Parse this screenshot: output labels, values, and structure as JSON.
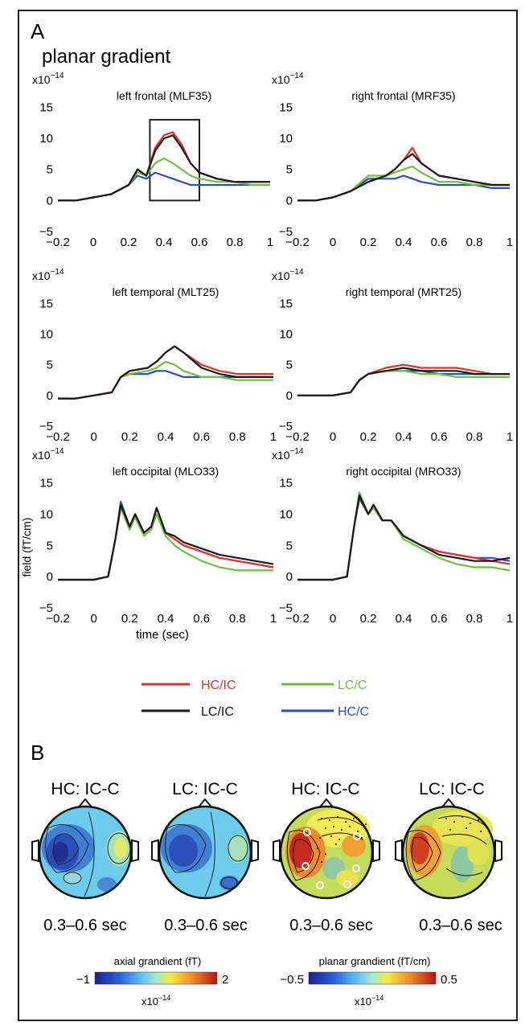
{
  "panel_a": {
    "letter": "A",
    "title": "planar gradient",
    "exponent_prefix": "x10",
    "exponent_power": "−14",
    "ylabel": "field (fT/cm)",
    "xlabel": "time (sec)",
    "yticks": [
      "15",
      "10",
      "5",
      "0",
      "−5"
    ],
    "xticks": [
      "−0.2",
      "0",
      "0.2",
      "0.4",
      "0.6",
      "0.8",
      "1"
    ],
    "subplot_titles": [
      "left frontal (MLF35)",
      "right frontal (MRF35)",
      "left temporal (MLT25)",
      "right temporal (MRT25)",
      "left occipital (MLO33)",
      "right occipital (MRO33)"
    ]
  },
  "legend": [
    {
      "label": "HC/IC",
      "color": "#e0312b"
    },
    {
      "label": "LC/C",
      "color": "#72bd45"
    },
    {
      "label": "LC/IC",
      "color": "#1a1a1a"
    },
    {
      "label": "HC/C",
      "color": "#2c4fb8"
    }
  ],
  "panel_b": {
    "letter": "B",
    "map_titles": [
      "HC: IC-C",
      "LC: IC-C",
      "HC: IC-C",
      "LC: IC-C"
    ],
    "time_labels": [
      "0.3–0.6 sec",
      "0.3–0.6 sec",
      "0.3–0.6 sec",
      "0.3–0.6 sec"
    ],
    "colorbar_axial": {
      "label": "axial grandient (fT)",
      "min": "−1",
      "max": "2",
      "scale": "x10",
      "scale_power": "−14"
    },
    "colorbar_planar": {
      "label": "planar grandient (fT/cm)",
      "min": "−0.5",
      "max": "0.5",
      "scale": "x10",
      "scale_power": "−14"
    }
  },
  "chart_data": [
    {
      "type": "line",
      "title": "left frontal (MLF35)",
      "xlabel": "",
      "ylabel": "",
      "xlim": [
        -0.2,
        1
      ],
      "ylim": [
        -5,
        17
      ],
      "highlight_box": {
        "x": [
          0.32,
          0.6
        ],
        "y": [
          0,
          13
        ]
      },
      "x": [
        -0.2,
        -0.1,
        0,
        0.1,
        0.2,
        0.25,
        0.3,
        0.35,
        0.4,
        0.45,
        0.5,
        0.55,
        0.6,
        0.7,
        0.8,
        0.9,
        1
      ],
      "series": [
        {
          "name": "HC/IC",
          "values": [
            0,
            0,
            0.5,
            1,
            2.5,
            5,
            4,
            8.5,
            10.5,
            11,
            9,
            6,
            4.5,
            3.5,
            3,
            3,
            3
          ]
        },
        {
          "name": "LC/IC",
          "values": [
            0,
            0,
            0.5,
            1,
            2.5,
            5,
            4,
            8,
            10,
            10.5,
            8.5,
            6,
            4.5,
            3.5,
            3,
            3,
            3
          ]
        },
        {
          "name": "LC/C",
          "values": [
            0,
            0,
            0.5,
            1,
            2.5,
            4.5,
            4,
            6,
            6.8,
            6,
            5,
            4,
            3.5,
            3,
            3,
            2.5,
            2.5
          ]
        },
        {
          "name": "HC/C",
          "values": [
            0,
            0,
            0.5,
            1,
            2.5,
            4,
            3.5,
            4.5,
            4,
            3.5,
            3,
            2.5,
            2.5,
            2.5,
            2.5,
            2.5,
            2.5
          ]
        }
      ]
    },
    {
      "type": "line",
      "title": "right frontal (MRF35)",
      "xlabel": "",
      "ylabel": "",
      "xlim": [
        -0.2,
        1
      ],
      "ylim": [
        -5,
        17
      ],
      "x": [
        -0.2,
        -0.1,
        0,
        0.1,
        0.2,
        0.3,
        0.35,
        0.4,
        0.45,
        0.5,
        0.6,
        0.7,
        0.8,
        0.9,
        1
      ],
      "series": [
        {
          "name": "HC/IC",
          "values": [
            0,
            0,
            0.5,
            1.5,
            3,
            4,
            5,
            6.5,
            8.5,
            6,
            4,
            3.5,
            3,
            2.5,
            2.5
          ]
        },
        {
          "name": "LC/IC",
          "values": [
            0,
            0,
            0.5,
            1.5,
            3,
            4,
            5,
            6.5,
            7.5,
            6,
            4,
            3.5,
            3,
            2.5,
            2.5
          ]
        },
        {
          "name": "LC/C",
          "values": [
            0,
            0,
            0.5,
            1.5,
            4,
            4,
            4.5,
            5,
            5.5,
            4.5,
            3,
            3,
            2.5,
            2.5,
            2.5
          ]
        },
        {
          "name": "HC/C",
          "values": [
            0,
            0,
            0.5,
            1.5,
            3.5,
            3.5,
            3.5,
            4,
            3.5,
            3,
            2.5,
            2.5,
            2.5,
            2,
            2
          ]
        }
      ]
    },
    {
      "type": "line",
      "title": "left temporal (MLT25)",
      "xlabel": "",
      "ylabel": "",
      "xlim": [
        -0.2,
        1
      ],
      "ylim": [
        -5,
        17
      ],
      "x": [
        -0.2,
        -0.1,
        0,
        0.1,
        0.15,
        0.2,
        0.3,
        0.35,
        0.4,
        0.45,
        0.5,
        0.6,
        0.7,
        0.8,
        0.9,
        1
      ],
      "series": [
        {
          "name": "HC/IC",
          "values": [
            -0.5,
            -0.5,
            0,
            0.5,
            3,
            4,
            4.5,
            5.5,
            7,
            8,
            7,
            5,
            4,
            3.5,
            3.5,
            3.5
          ]
        },
        {
          "name": "LC/IC",
          "values": [
            -0.5,
            -0.5,
            0,
            0.5,
            3,
            4,
            4.5,
            5.5,
            7,
            8,
            7,
            4.5,
            3.5,
            3,
            3,
            3
          ]
        },
        {
          "name": "LC/C",
          "values": [
            -0.5,
            -0.5,
            0,
            0.5,
            3,
            3.5,
            4,
            4.5,
            5.5,
            5,
            4,
            3,
            3,
            2.5,
            2.5,
            2.5
          ]
        },
        {
          "name": "HC/C",
          "values": [
            -0.5,
            -0.5,
            0,
            0.5,
            3,
            3.5,
            3.5,
            4,
            4,
            3.5,
            3,
            3,
            3,
            3,
            3,
            3
          ]
        }
      ]
    },
    {
      "type": "line",
      "title": "right temporal (MRT25)",
      "xlabel": "",
      "ylabel": "",
      "xlim": [
        -0.2,
        1
      ],
      "ylim": [
        -5,
        17
      ],
      "x": [
        -0.2,
        -0.1,
        0,
        0.1,
        0.15,
        0.2,
        0.3,
        0.4,
        0.5,
        0.6,
        0.7,
        0.8,
        0.9,
        1
      ],
      "series": [
        {
          "name": "HC/IC",
          "values": [
            0,
            0,
            0,
            0.5,
            2.5,
            3.5,
            4.5,
            5,
            4.5,
            4.5,
            4.5,
            4,
            3.5,
            3.5
          ]
        },
        {
          "name": "LC/IC",
          "values": [
            0,
            0,
            0,
            0.5,
            2.5,
            3.5,
            4,
            4.5,
            4,
            4,
            4,
            3.5,
            3.5,
            3.5
          ]
        },
        {
          "name": "LC/C",
          "values": [
            0,
            0,
            0,
            0.5,
            2.5,
            3.5,
            4,
            4,
            3.5,
            3.5,
            3,
            3,
            3,
            3
          ]
        },
        {
          "name": "HC/C",
          "values": [
            0,
            0,
            0,
            0.5,
            2.5,
            3.5,
            4,
            4,
            4,
            3.5,
            3.5,
            3.5,
            3.5,
            3.5
          ]
        }
      ]
    },
    {
      "type": "line",
      "title": "left occipital (MLO33)",
      "xlabel": "time (sec)",
      "ylabel": "field (fT/cm)",
      "xlim": [
        -0.2,
        1
      ],
      "ylim": [
        -5,
        17
      ],
      "x": [
        -0.2,
        -0.1,
        0,
        0.08,
        0.12,
        0.15,
        0.2,
        0.23,
        0.28,
        0.32,
        0.35,
        0.4,
        0.45,
        0.5,
        0.6,
        0.7,
        0.8,
        0.9,
        1
      ],
      "series": [
        {
          "name": "HC/IC",
          "values": [
            -0.5,
            -0.5,
            -0.5,
            0,
            6,
            11.5,
            8,
            10,
            7,
            8,
            11,
            7,
            6,
            5,
            4,
            3,
            2.5,
            2,
            1.5
          ]
        },
        {
          "name": "LC/IC",
          "values": [
            -0.5,
            -0.5,
            -0.5,
            0,
            6,
            11.5,
            8,
            10,
            7,
            8,
            11,
            7,
            6.5,
            5.5,
            4.5,
            3.5,
            3,
            2.5,
            2
          ]
        },
        {
          "name": "LC/C",
          "values": [
            -0.5,
            -0.5,
            -0.5,
            0,
            6,
            11,
            7.5,
            9.5,
            6.5,
            7.5,
            10,
            6.5,
            5,
            4,
            2.5,
            1.5,
            1,
            1,
            1
          ]
        },
        {
          "name": "HC/C",
          "values": [
            -0.5,
            -0.5,
            -0.5,
            0,
            6,
            12,
            8,
            10,
            7,
            8,
            11,
            7,
            6,
            5,
            4,
            3,
            2.5,
            2,
            1.5
          ]
        }
      ]
    },
    {
      "type": "line",
      "title": "right occipital (MRO33)",
      "xlabel": "",
      "ylabel": "",
      "xlim": [
        -0.2,
        1
      ],
      "ylim": [
        -5,
        17
      ],
      "x": [
        -0.2,
        -0.1,
        0,
        0.08,
        0.12,
        0.15,
        0.2,
        0.23,
        0.28,
        0.33,
        0.4,
        0.5,
        0.6,
        0.7,
        0.8,
        0.9,
        1
      ],
      "series": [
        {
          "name": "HC/IC",
          "values": [
            -0.5,
            -0.5,
            -0.5,
            0,
            8,
            13,
            10,
            11.5,
            9,
            9,
            6.5,
            5,
            4,
            3.5,
            3,
            2.5,
            2
          ]
        },
        {
          "name": "LC/IC",
          "values": [
            -0.5,
            -0.5,
            -0.5,
            0,
            8,
            13,
            10,
            11.5,
            9,
            9,
            6.5,
            5,
            3.5,
            3,
            2.5,
            2.5,
            3
          ]
        },
        {
          "name": "LC/C",
          "values": [
            -0.5,
            -0.5,
            -0.5,
            0,
            8,
            13.5,
            10,
            11,
            9,
            9,
            6,
            4.5,
            3,
            2,
            1.5,
            1.5,
            1
          ]
        },
        {
          "name": "HC/C",
          "values": [
            -0.5,
            -0.5,
            -0.5,
            0,
            8,
            12.5,
            10,
            11,
            9,
            9,
            6.5,
            5,
            4,
            3.5,
            3,
            3,
            2.5
          ]
        }
      ]
    }
  ]
}
